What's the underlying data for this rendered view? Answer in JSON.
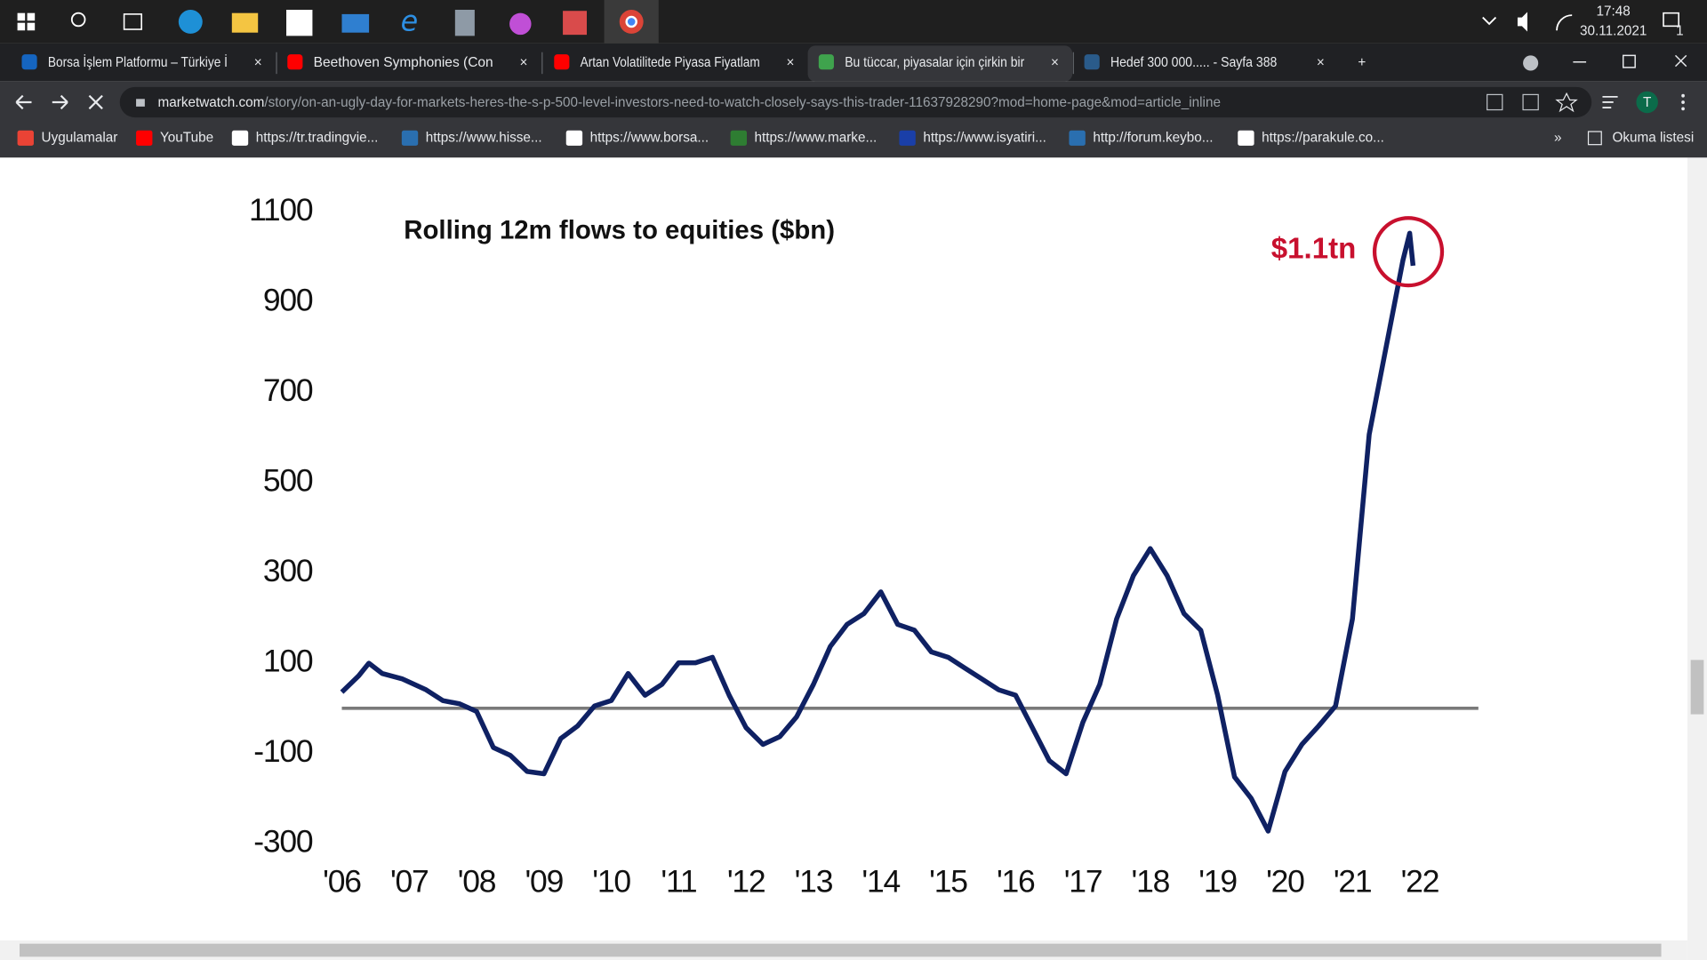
{
  "taskbar": {
    "time": "17:48",
    "date": "30.11.2021",
    "notifications": "1"
  },
  "tabs": [
    "Borsa İşlem Platformu – Türkiye İ",
    "Beethoven Symphonies (Con",
    "Artan Volatilitede Piyasa Fiyatlam",
    "Bu tüccar, piyasalar için çirkin bir",
    "Hedef 300 000..... - Sayfa 388"
  ],
  "address": {
    "domain": "marketwatch.com",
    "path": "/story/on-an-ugly-day-for-markets-heres-the-s-p-500-level-investors-need-to-watch-closely-says-this-trader-11637928290?mod=home-page&mod=article_inline"
  },
  "profile": "T",
  "bookmarks": [
    "Uygulamalar",
    "YouTube",
    "https://tr.tradingvie...",
    "https://www.hisse...",
    "https://www.borsa...",
    "https://www.marke...",
    "https://www.isyatiri...",
    "http://forum.keybo...",
    "https://parakule.co..."
  ],
  "reading_list": "Okuma listesi",
  "chart_data": {
    "type": "line",
    "title": "Rolling 12m flows to equities ($bn)",
    "x": [
      2006.0,
      2006.25,
      2006.4,
      2006.6,
      2006.9,
      2007.25,
      2007.5,
      2007.75,
      2008.0,
      2008.25,
      2008.5,
      2008.75,
      2009.0,
      2009.25,
      2009.5,
      2009.75,
      2010.0,
      2010.25,
      2010.5,
      2010.75,
      2011.0,
      2011.25,
      2011.5,
      2011.75,
      2012.0,
      2012.25,
      2012.5,
      2012.75,
      2013.0,
      2013.25,
      2013.5,
      2013.75,
      2014.0,
      2014.25,
      2014.5,
      2014.75,
      2015.0,
      2015.25,
      2015.5,
      2015.75,
      2016.0,
      2016.25,
      2016.5,
      2016.75,
      2017.0,
      2017.25,
      2017.5,
      2017.75,
      2018.0,
      2018.25,
      2018.5,
      2018.75,
      2019.0,
      2019.25,
      2019.5,
      2019.75,
      2020.0,
      2020.25,
      2020.5,
      2020.75,
      2021.0,
      2021.25,
      2021.5,
      2021.75,
      2021.85,
      2021.9
    ],
    "values": [
      36,
      72,
      100,
      77,
      65,
      41,
      17,
      10,
      -7,
      -87,
      -104,
      -140,
      -145,
      -67,
      -39,
      5,
      17,
      77,
      29,
      53,
      101,
      101,
      113,
      29,
      -43,
      -80,
      -63,
      -19,
      53,
      137,
      186,
      210,
      258,
      186,
      173,
      125,
      113,
      89,
      65,
      41,
      29,
      -43,
      -116,
      -145,
      -31,
      53,
      198,
      294,
      354,
      294,
      210,
      173,
      29,
      -152,
      -200,
      -272,
      -140,
      -80,
      -39,
      5,
      198,
      607,
      800,
      993,
      1053,
      981
    ],
    "color": "#0f2163",
    "hline": 0,
    "xlim": [
      2006,
      2022.87
    ],
    "xticks": [
      {
        "value": 2006,
        "label": "'06"
      },
      {
        "value": 2007,
        "label": "'07"
      },
      {
        "value": 2008,
        "label": "'08"
      },
      {
        "value": 2009,
        "label": "'09"
      },
      {
        "value": 2010,
        "label": "'10"
      },
      {
        "value": 2011,
        "label": "'11"
      },
      {
        "value": 2012,
        "label": "'12"
      },
      {
        "value": 2013,
        "label": "'13"
      },
      {
        "value": 2014,
        "label": "'14"
      },
      {
        "value": 2015,
        "label": "'15"
      },
      {
        "value": 2016,
        "label": "'16"
      },
      {
        "value": 2017,
        "label": "'17"
      },
      {
        "value": 2018,
        "label": "'18"
      },
      {
        "value": 2019,
        "label": "'19"
      },
      {
        "value": 2020,
        "label": "'20"
      },
      {
        "value": 2021,
        "label": "'21"
      },
      {
        "value": 2022,
        "label": "'22"
      }
    ],
    "ylim": [
      -300,
      1100
    ],
    "yticks": [
      -300,
      -100,
      100,
      300,
      500,
      700,
      900,
      1100
    ],
    "annotation": {
      "text": "$1.1tn",
      "x": 2021.83,
      "y": 1012,
      "color": "#c8102e"
    }
  }
}
